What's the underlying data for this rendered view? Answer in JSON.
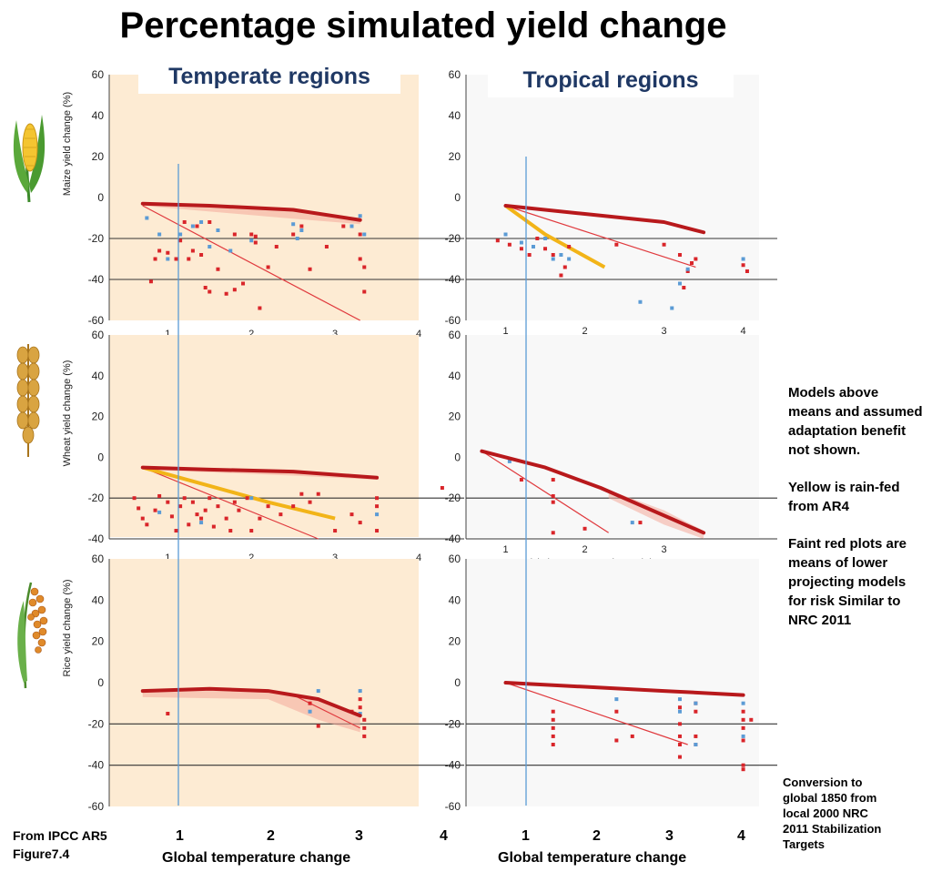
{
  "title": "Percentage simulated yield change",
  "columns": [
    "Temperate regions",
    "Tropical regions"
  ],
  "y_labels": [
    "Maize yield change (%)",
    "Wheat yield change (%)",
    "Rice yield change (%)"
  ],
  "crop_icons": [
    "maize-icon",
    "wheat-icon",
    "rice-icon"
  ],
  "panel_xlabel": "Global Temperature Change (C)",
  "bottom_xlabel": "Global temperature change",
  "bottom_ticks_left": [
    "1",
    "2",
    "3",
    "4"
  ],
  "bottom_ticks_right": [
    "1",
    "2",
    "3",
    "4"
  ],
  "notes": [
    "Models above means and assumed adaptation benefit not shown.",
    "Yellow is rain-fed from AR4",
    "Faint red plots are means of lower projecting models for risk Similar to NRC 2011"
  ],
  "conversion_note": "Conversion to global 1850 from local 2000 NRC 2011 Stabilization Targets",
  "source": "From IPCC AR5 Figure7.4",
  "colors": {
    "temperate_bg": "#fdebd3",
    "tropical_bg": "#f8f8f8",
    "mean_line": "#b8191c",
    "rainfed_line": "#f2b418",
    "thin_line": "#e03a3e",
    "red_points": "#d9252a",
    "blue_points": "#5b9bd5",
    "ref_line": "#5b9bd5",
    "title_blue": "#1f3864"
  },
  "chart_data": [
    {
      "type": "scatter",
      "crop": "Maize",
      "region": "Temperate",
      "xlim": [
        0.3,
        4
      ],
      "ylim": [
        -60,
        60
      ],
      "yticks": [
        60,
        40,
        20,
        0,
        -20,
        -40,
        -60
      ],
      "xticks": [
        1,
        2,
        3,
        4
      ],
      "mean": [
        [
          0.7,
          -3
        ],
        [
          1.5,
          -4
        ],
        [
          2.5,
          -6
        ],
        [
          3.3,
          -11
        ]
      ],
      "fit_thin": [
        [
          0.7,
          -4
        ],
        [
          3.3,
          -60
        ]
      ],
      "rainfed": [],
      "band": [
        [
          0.7,
          -3,
          -4
        ],
        [
          2.4,
          -6,
          -10
        ],
        [
          3.3,
          -11,
          -13
        ]
      ],
      "red_points": [
        [
          0.8,
          -41
        ],
        [
          0.85,
          -30
        ],
        [
          0.9,
          -26
        ],
        [
          1.0,
          -27
        ],
        [
          1.1,
          -30
        ],
        [
          1.15,
          -21
        ],
        [
          1.2,
          -12
        ],
        [
          1.25,
          -30
        ],
        [
          1.3,
          -26
        ],
        [
          1.35,
          -14
        ],
        [
          1.4,
          -28
        ],
        [
          1.45,
          -44
        ],
        [
          1.5,
          -46
        ],
        [
          1.6,
          -35
        ],
        [
          1.7,
          -47
        ],
        [
          1.8,
          -45
        ],
        [
          1.9,
          -42
        ],
        [
          2.0,
          -18
        ],
        [
          2.05,
          -22
        ],
        [
          2.1,
          -54
        ],
        [
          2.2,
          -34
        ],
        [
          2.3,
          -24
        ],
        [
          2.5,
          -18
        ],
        [
          2.6,
          -14
        ],
        [
          2.7,
          -35
        ],
        [
          2.9,
          -24
        ],
        [
          3.1,
          -14
        ],
        [
          3.3,
          -30
        ],
        [
          3.35,
          -34
        ],
        [
          3.35,
          -46
        ],
        [
          3.3,
          -18
        ],
        [
          1.5,
          -12
        ],
        [
          1.8,
          -18
        ],
        [
          2.05,
          -19
        ]
      ],
      "blue_points": [
        [
          0.75,
          -10
        ],
        [
          0.9,
          -18
        ],
        [
          1.0,
          -30
        ],
        [
          1.15,
          -18
        ],
        [
          1.3,
          -14
        ],
        [
          1.4,
          -12
        ],
        [
          1.5,
          -24
        ],
        [
          1.6,
          -16
        ],
        [
          1.75,
          -26
        ],
        [
          2.0,
          -21
        ],
        [
          2.5,
          -13
        ],
        [
          2.55,
          -20
        ],
        [
          2.6,
          -16
        ],
        [
          3.2,
          -14
        ],
        [
          3.3,
          -9
        ],
        [
          3.35,
          -18
        ]
      ]
    },
    {
      "type": "scatter",
      "crop": "Maize",
      "region": "Tropical",
      "xlim": [
        0.5,
        4.2
      ],
      "ylim": [
        -60,
        60
      ],
      "yticks": [
        60,
        40,
        20,
        0,
        -20,
        -40,
        -60
      ],
      "xticks": [
        1,
        2,
        3,
        4
      ],
      "mean": [
        [
          1.0,
          -4
        ],
        [
          2.0,
          -8
        ],
        [
          3.0,
          -12
        ],
        [
          3.5,
          -17
        ]
      ],
      "fit_thin": [
        [
          1.0,
          -4
        ],
        [
          3.4,
          -34
        ]
      ],
      "rainfed": [
        [
          1.0,
          -4
        ],
        [
          1.5,
          -18
        ],
        [
          2.25,
          -34
        ]
      ],
      "band": [],
      "red_points": [
        [
          0.9,
          -21
        ],
        [
          1.05,
          -23
        ],
        [
          1.2,
          -25
        ],
        [
          1.3,
          -28
        ],
        [
          1.4,
          -20
        ],
        [
          1.5,
          -25
        ],
        [
          1.6,
          -28
        ],
        [
          1.7,
          -38
        ],
        [
          1.75,
          -34
        ],
        [
          1.8,
          -24
        ],
        [
          2.4,
          -23
        ],
        [
          3.0,
          -23
        ],
        [
          3.2,
          -28
        ],
        [
          3.25,
          -44
        ],
        [
          3.3,
          -36
        ],
        [
          3.35,
          -32
        ],
        [
          3.4,
          -30
        ],
        [
          4.0,
          -33
        ],
        [
          4.05,
          -36
        ]
      ],
      "blue_points": [
        [
          1.0,
          -18
        ],
        [
          1.2,
          -22
        ],
        [
          1.35,
          -24
        ],
        [
          1.5,
          -20
        ],
        [
          1.6,
          -30
        ],
        [
          1.7,
          -28
        ],
        [
          1.8,
          -30
        ],
        [
          2.7,
          -51
        ],
        [
          3.1,
          -54
        ],
        [
          3.2,
          -42
        ],
        [
          3.3,
          -35
        ],
        [
          4.0,
          -30
        ]
      ]
    },
    {
      "type": "scatter",
      "crop": "Wheat",
      "region": "Temperate",
      "xlim": [
        0.3,
        4
      ],
      "ylim": [
        -40,
        60
      ],
      "yticks": [
        60,
        40,
        20,
        0,
        -20,
        -40
      ],
      "xticks": [
        1,
        2,
        3,
        4
      ],
      "mean": [
        [
          0.7,
          -5
        ],
        [
          1.5,
          -6
        ],
        [
          2.5,
          -7
        ],
        [
          3.5,
          -10
        ]
      ],
      "fit_thin": [
        [
          0.7,
          -5
        ],
        [
          2.8,
          -40
        ]
      ],
      "rainfed": [
        [
          0.7,
          -5
        ],
        [
          1.5,
          -14
        ],
        [
          2.2,
          -22
        ],
        [
          3.0,
          -30
        ]
      ],
      "band": [
        [
          0.7,
          -5,
          -6
        ],
        [
          2.5,
          -7,
          -9
        ],
        [
          3.5,
          -10,
          -11
        ]
      ],
      "red_points": [
        [
          0.6,
          -20
        ],
        [
          0.65,
          -25
        ],
        [
          0.7,
          -30
        ],
        [
          0.75,
          -33
        ],
        [
          0.85,
          -26
        ],
        [
          0.9,
          -19
        ],
        [
          1.0,
          -22
        ],
        [
          1.05,
          -29
        ],
        [
          1.1,
          -36
        ],
        [
          1.15,
          -24
        ],
        [
          1.2,
          -20
        ],
        [
          1.25,
          -33
        ],
        [
          1.3,
          -22
        ],
        [
          1.35,
          -28
        ],
        [
          1.4,
          -30
        ],
        [
          1.45,
          -26
        ],
        [
          1.5,
          -20
        ],
        [
          1.55,
          -34
        ],
        [
          1.6,
          -24
        ],
        [
          1.7,
          -30
        ],
        [
          1.75,
          -36
        ],
        [
          1.8,
          -22
        ],
        [
          1.85,
          -26
        ],
        [
          1.95,
          -20
        ],
        [
          2.0,
          -36
        ],
        [
          2.1,
          -30
        ],
        [
          2.2,
          -24
        ],
        [
          2.35,
          -28
        ],
        [
          2.5,
          -24
        ],
        [
          2.6,
          -18
        ],
        [
          2.7,
          -22
        ],
        [
          2.8,
          -18
        ],
        [
          3.0,
          -36
        ],
        [
          3.2,
          -28
        ],
        [
          3.3,
          -32
        ],
        [
          3.5,
          -20
        ],
        [
          3.5,
          -36
        ],
        [
          3.5,
          -24
        ]
      ],
      "blue_points": [
        [
          0.9,
          -27
        ],
        [
          1.4,
          -32
        ],
        [
          2.0,
          -20
        ],
        [
          3.5,
          -28
        ]
      ]
    },
    {
      "type": "scatter",
      "crop": "Wheat",
      "region": "Tropical",
      "xlim": [
        0.5,
        4.2
      ],
      "ylim": [
        -40,
        60
      ],
      "yticks": [
        60,
        40,
        20,
        0,
        -20,
        -40
      ],
      "xticks": [
        1,
        2,
        3
      ],
      "mean": [
        [
          0.7,
          3
        ],
        [
          1.5,
          -5
        ],
        [
          2.2,
          -15
        ],
        [
          3.5,
          -37
        ]
      ],
      "fit_thin": [
        [
          0.7,
          3
        ],
        [
          2.3,
          -37
        ]
      ],
      "rainfed": [],
      "band": [
        [
          2.3,
          -16,
          -20
        ],
        [
          3.0,
          -26,
          -33
        ],
        [
          3.5,
          -36,
          -40
        ]
      ],
      "red_points": [
        [
          0.2,
          -15
        ],
        [
          1.2,
          -11
        ],
        [
          1.6,
          -11
        ],
        [
          1.6,
          -19
        ],
        [
          1.6,
          -22
        ],
        [
          1.6,
          -37
        ],
        [
          2.0,
          -35
        ],
        [
          2.7,
          -32
        ]
      ],
      "blue_points": [
        [
          1.05,
          -2
        ],
        [
          2.6,
          -32
        ]
      ]
    },
    {
      "type": "scatter",
      "crop": "Rice",
      "region": "Temperate",
      "xlim": [
        0.3,
        4
      ],
      "ylim": [
        -60,
        60
      ],
      "yticks": [
        60,
        40,
        20,
        0,
        -20,
        -40,
        -60
      ],
      "xticks": [
        1,
        2,
        3,
        4
      ],
      "mean": [
        [
          0.7,
          -4
        ],
        [
          1.5,
          -3
        ],
        [
          2.2,
          -4
        ],
        [
          2.8,
          -8
        ],
        [
          3.3,
          -16
        ]
      ],
      "fit_thin": [
        [
          2.5,
          -6
        ],
        [
          3.3,
          -22
        ]
      ],
      "rainfed": [],
      "band": [
        [
          0.7,
          -4,
          -7
        ],
        [
          2.2,
          -4,
          -8
        ],
        [
          2.8,
          -8,
          -18
        ],
        [
          3.3,
          -16,
          -24
        ]
      ],
      "red_points": [
        [
          1.0,
          -15
        ],
        [
          2.8,
          -21
        ],
        [
          3.3,
          -12
        ],
        [
          3.35,
          -18
        ],
        [
          3.35,
          -22
        ],
        [
          3.35,
          -26
        ],
        [
          3.3,
          -8
        ],
        [
          3.2,
          -14
        ],
        [
          2.7,
          -10
        ]
      ],
      "blue_points": [
        [
          2.7,
          -14
        ],
        [
          2.8,
          -4
        ],
        [
          3.3,
          -4
        ],
        [
          3.3,
          -15
        ]
      ]
    },
    {
      "type": "scatter",
      "crop": "Rice",
      "region": "Tropical",
      "xlim": [
        0.5,
        4.2
      ],
      "ylim": [
        -60,
        60
      ],
      "yticks": [
        60,
        40,
        20,
        0,
        -20,
        -40,
        -60
      ],
      "xticks": [
        1,
        2,
        3,
        4
      ],
      "mean": [
        [
          1.0,
          0
        ],
        [
          2.0,
          -2
        ],
        [
          3.0,
          -4
        ],
        [
          4.0,
          -6
        ]
      ],
      "fit_thin": [
        [
          1.0,
          0
        ],
        [
          3.3,
          -30
        ]
      ],
      "rainfed": [],
      "band": [],
      "red_points": [
        [
          1.6,
          -14
        ],
        [
          1.6,
          -18
        ],
        [
          1.6,
          -22
        ],
        [
          1.6,
          -26
        ],
        [
          1.6,
          -30
        ],
        [
          2.4,
          -14
        ],
        [
          2.4,
          -28
        ],
        [
          2.6,
          -26
        ],
        [
          3.2,
          -12
        ],
        [
          3.2,
          -20
        ],
        [
          3.2,
          -26
        ],
        [
          3.2,
          -30
        ],
        [
          3.2,
          -36
        ],
        [
          3.4,
          -10
        ],
        [
          3.4,
          -14
        ],
        [
          3.4,
          -26
        ],
        [
          3.4,
          -30
        ],
        [
          4.0,
          -14
        ],
        [
          4.0,
          -18
        ],
        [
          4.0,
          -22
        ],
        [
          4.0,
          -28
        ],
        [
          4.0,
          -40
        ],
        [
          4.0,
          -42
        ],
        [
          4.1,
          -18
        ]
      ],
      "blue_points": [
        [
          2.4,
          -8
        ],
        [
          3.2,
          -8
        ],
        [
          3.2,
          -14
        ],
        [
          3.4,
          -10
        ],
        [
          3.4,
          -30
        ],
        [
          4.0,
          -10
        ],
        [
          4.0,
          -26
        ]
      ]
    }
  ]
}
